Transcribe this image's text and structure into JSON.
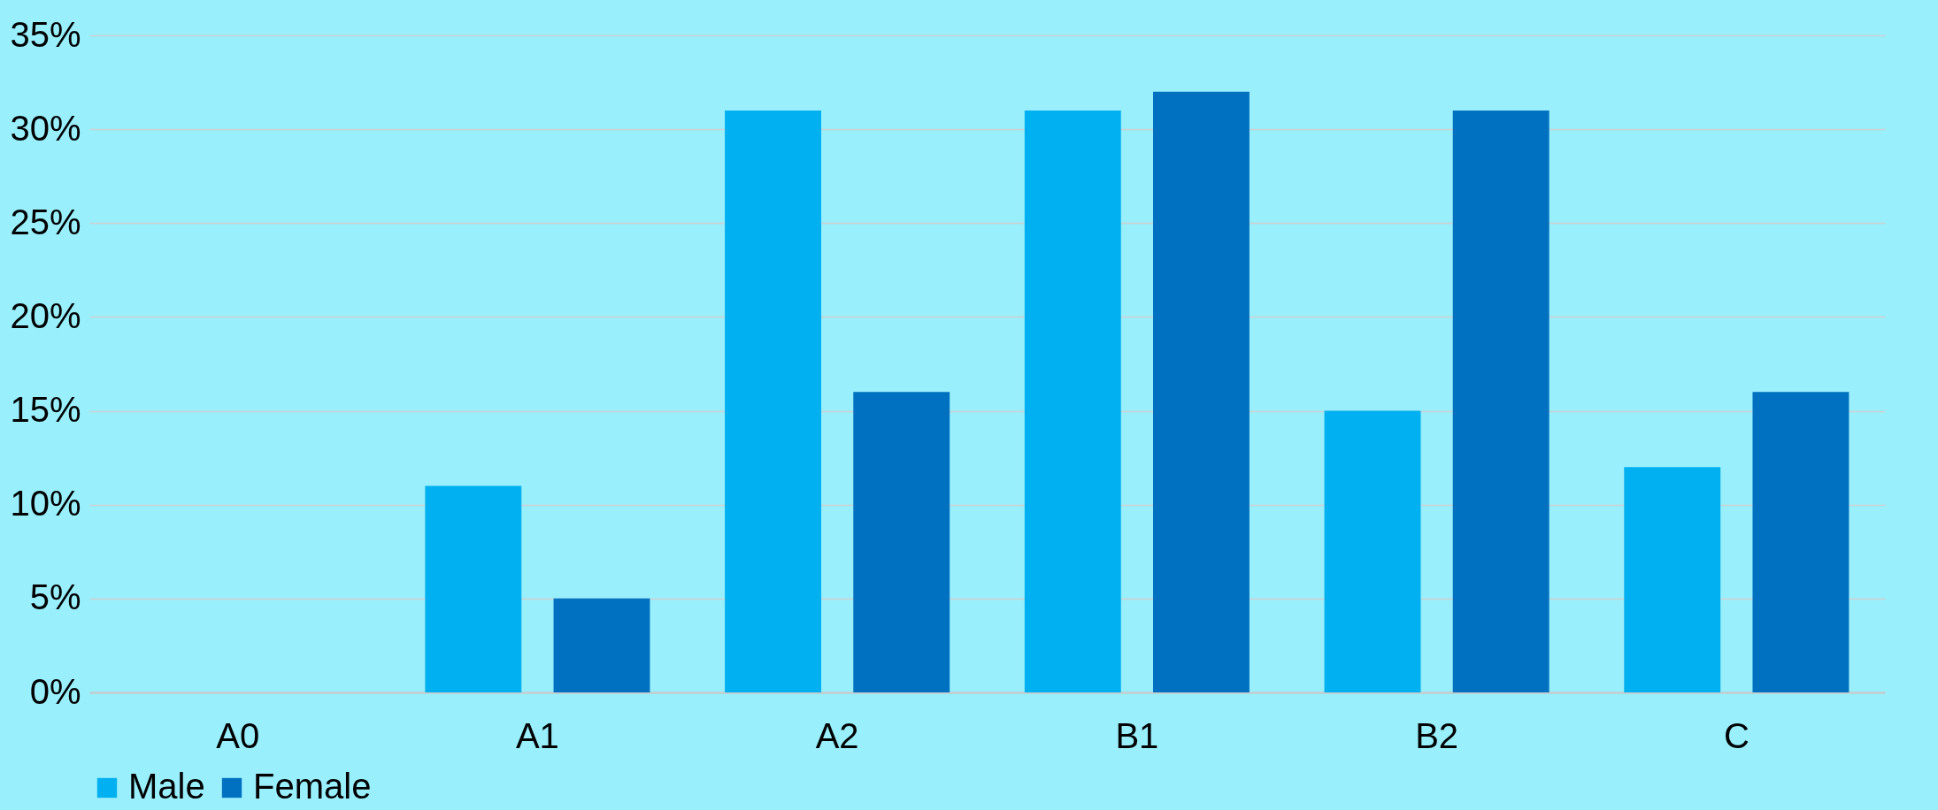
{
  "chart_data": {
    "type": "bar",
    "categories": [
      "A0",
      "A1",
      "A2",
      "B1",
      "B2",
      "C"
    ],
    "series": [
      {
        "name": "Male",
        "color": "#00b0f0",
        "values": [
          0,
          11,
          31,
          31,
          15,
          12
        ]
      },
      {
        "name": "Female",
        "color": "#0070c0",
        "values": [
          0,
          5,
          16,
          32,
          31,
          16
        ]
      }
    ],
    "ylim": [
      0,
      35
    ],
    "yticks": [
      {
        "value": 0,
        "label": "0%"
      },
      {
        "value": 5,
        "label": "5%"
      },
      {
        "value": 10,
        "label": "10%"
      },
      {
        "value": 15,
        "label": "15%"
      },
      {
        "value": 20,
        "label": "20%"
      },
      {
        "value": 25,
        "label": "25%"
      },
      {
        "value": 30,
        "label": "30%"
      },
      {
        "value": 35,
        "label": "35%"
      }
    ],
    "grid": "y",
    "legend": "bottom"
  }
}
